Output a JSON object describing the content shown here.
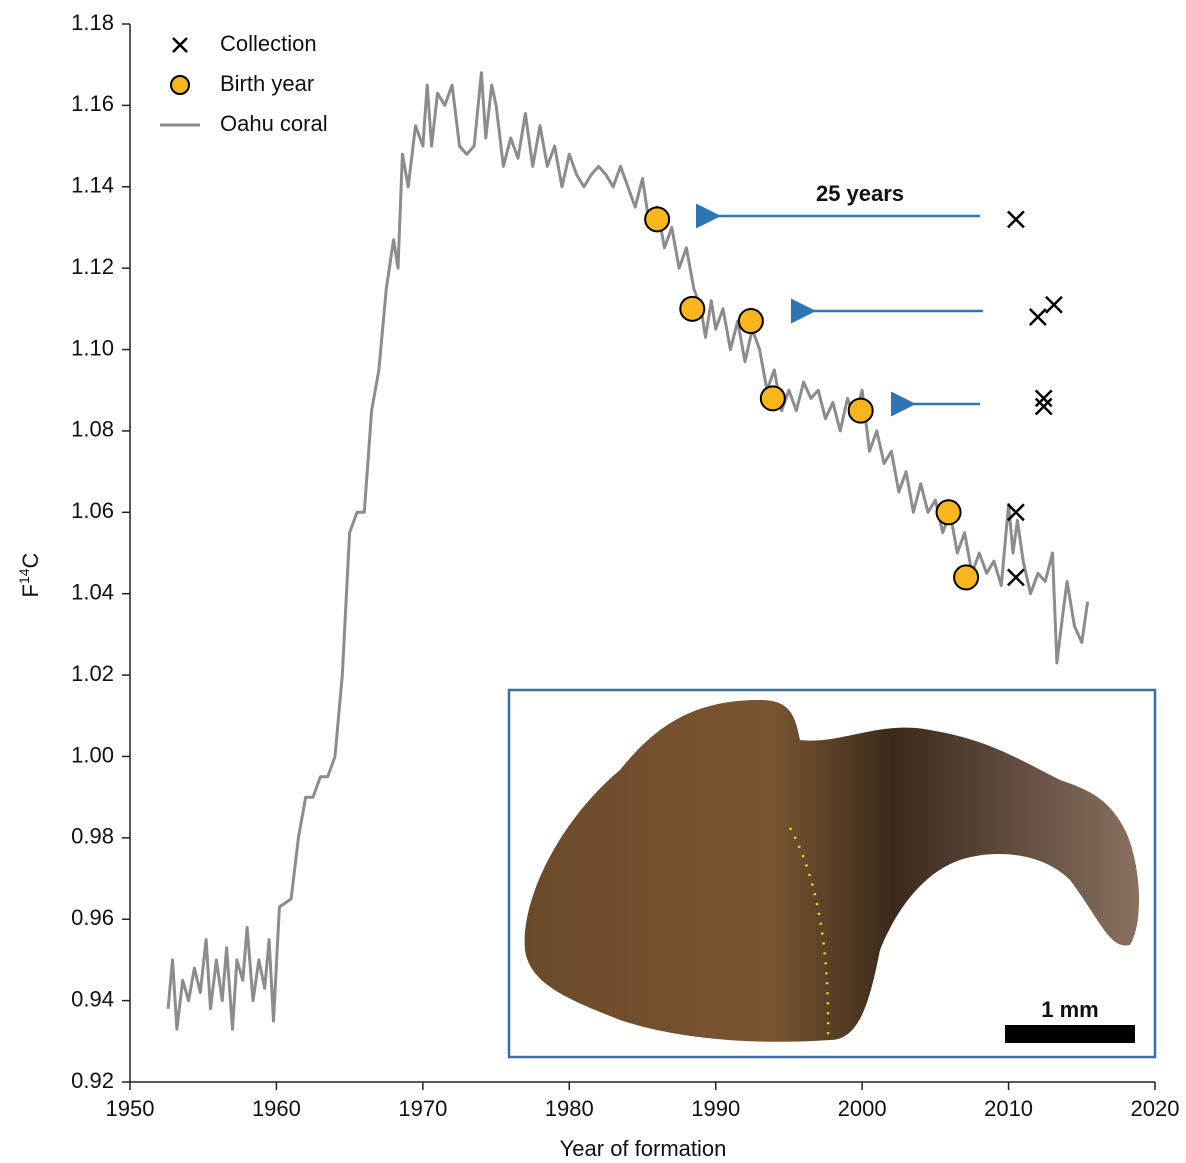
{
  "chart_data": {
    "type": "line",
    "xlabel": "Year of formation",
    "ylabel_parts": [
      "F",
      "14",
      "C"
    ],
    "xlim": [
      1950,
      2020
    ],
    "xticks": [
      1950,
      1960,
      1970,
      1980,
      1990,
      2000,
      2010,
      2020
    ],
    "ylim": [
      0.92,
      1.18
    ],
    "yticks": [
      0.92,
      0.94,
      0.96,
      0.98,
      {
        "value": 1.0,
        "label": "1.00"
      },
      1.02,
      1.04,
      1.06,
      1.08,
      {
        "value": 1.1,
        "label": "1.10"
      },
      1.12,
      1.14,
      1.16,
      1.18
    ],
    "legend": "upper left",
    "annotations": [
      "25 years"
    ],
    "scale_bar_label": "1 mm",
    "series": [
      {
        "name": "Collection",
        "style": "cross",
        "color": "#000000",
        "x": [
          2010.5,
          2012.0,
          2013.1,
          2012.4,
          2012.4,
          2010.5,
          2010.5
        ],
        "values": [
          1.132,
          1.108,
          1.111,
          1.088,
          1.086,
          1.06,
          1.044
        ]
      },
      {
        "name": "Birth year",
        "style": "circle",
        "color": "#f9b51c",
        "x": [
          1986.0,
          1988.4,
          1992.4,
          1993.9,
          1999.9,
          2005.9,
          2007.1
        ],
        "values": [
          1.132,
          1.11,
          1.107,
          1.088,
          1.085,
          1.06,
          1.044
        ]
      },
      {
        "name": "Oahu coral",
        "style": "line",
        "color": "#8c8c8c",
        "x": [
          1952.6,
          1952.9,
          1953.2,
          1953.6,
          1954.0,
          1954.4,
          1954.8,
          1955.2,
          1955.5,
          1955.9,
          1956.3,
          1956.6,
          1957.0,
          1957.3,
          1957.7,
          1958.0,
          1958.4,
          1958.8,
          1959.2,
          1959.5,
          1959.8,
          1960.2,
          1961.0,
          1961.5,
          1962.0,
          1962.5,
          1963.0,
          1963.5,
          1964.0,
          1964.5,
          1965.0,
          1965.5,
          1966.0,
          1966.5,
          1967.0,
          1967.5,
          1968.0,
          1968.3,
          1968.6,
          1969.0,
          1969.5,
          1970.0,
          1970.3,
          1970.6,
          1971.0,
          1971.5,
          1972.0,
          1972.5,
          1973.0,
          1973.5,
          1974.0,
          1974.3,
          1974.7,
          1975.0,
          1975.5,
          1976.0,
          1976.5,
          1977.0,
          1977.5,
          1978.0,
          1978.5,
          1979.0,
          1979.5,
          1980.0,
          1980.5,
          1981.0,
          1981.5,
          1982.0,
          1982.5,
          1983.0,
          1983.5,
          1984.0,
          1984.5,
          1985.0,
          1985.5,
          1986.0,
          1986.5,
          1987.0,
          1987.5,
          1988.0,
          1988.5,
          1989.0,
          1989.3,
          1989.7,
          1990.0,
          1990.5,
          1991.0,
          1991.5,
          1992.0,
          1992.5,
          1993.0,
          1993.5,
          1994.0,
          1994.5,
          1995.0,
          1995.5,
          1996.0,
          1996.5,
          1997.0,
          1997.5,
          1998.0,
          1998.5,
          1999.0,
          1999.5,
          2000.0,
          2000.5,
          2001.0,
          2001.5,
          2002.0,
          2002.5,
          2003.0,
          2003.5,
          2004.0,
          2004.5,
          2005.0,
          2005.5,
          2006.0,
          2006.5,
          2007.0,
          2007.5,
          2008.0,
          2008.5,
          2009.0,
          2009.5,
          2010.0,
          2010.3,
          2010.6,
          2011.0,
          2011.5,
          2012.0,
          2012.5,
          2013.0,
          2013.3,
          2013.7,
          2014.0,
          2014.5,
          2015.0,
          2015.4
        ],
        "values": [
          0.938,
          0.95,
          0.933,
          0.945,
          0.94,
          0.948,
          0.942,
          0.955,
          0.938,
          0.95,
          0.94,
          0.953,
          0.933,
          0.95,
          0.945,
          0.958,
          0.94,
          0.95,
          0.943,
          0.955,
          0.935,
          0.963,
          0.965,
          0.98,
          0.99,
          0.99,
          0.995,
          0.995,
          1.0,
          1.02,
          1.055,
          1.06,
          1.06,
          1.085,
          1.095,
          1.115,
          1.127,
          1.12,
          1.148,
          1.14,
          1.155,
          1.15,
          1.165,
          1.15,
          1.163,
          1.16,
          1.165,
          1.15,
          1.148,
          1.15,
          1.168,
          1.152,
          1.165,
          1.16,
          1.145,
          1.152,
          1.147,
          1.158,
          1.145,
          1.155,
          1.145,
          1.15,
          1.14,
          1.148,
          1.143,
          1.14,
          1.143,
          1.145,
          1.143,
          1.14,
          1.145,
          1.14,
          1.135,
          1.142,
          1.13,
          1.135,
          1.125,
          1.13,
          1.12,
          1.125,
          1.115,
          1.11,
          1.103,
          1.112,
          1.105,
          1.11,
          1.1,
          1.107,
          1.097,
          1.105,
          1.1,
          1.09,
          1.095,
          1.085,
          1.09,
          1.085,
          1.092,
          1.088,
          1.09,
          1.083,
          1.087,
          1.08,
          1.088,
          1.083,
          1.09,
          1.075,
          1.08,
          1.072,
          1.075,
          1.065,
          1.07,
          1.06,
          1.067,
          1.06,
          1.063,
          1.055,
          1.06,
          1.05,
          1.055,
          1.045,
          1.05,
          1.045,
          1.048,
          1.042,
          1.062,
          1.05,
          1.058,
          1.048,
          1.04,
          1.045,
          1.043,
          1.05,
          1.023,
          1.035,
          1.043,
          1.032,
          1.028,
          1.038
        ]
      }
    ]
  }
}
